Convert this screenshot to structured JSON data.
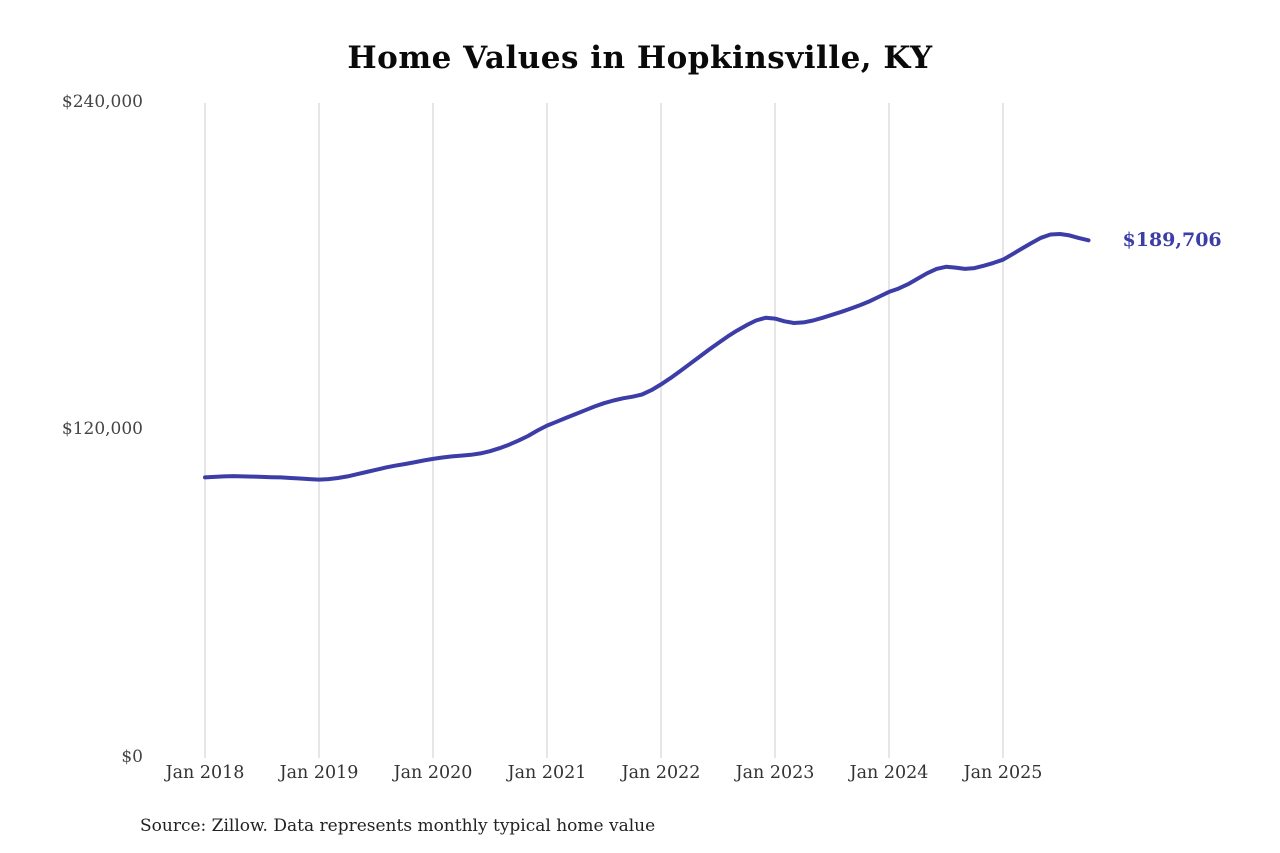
{
  "source_note": "Source: Zillow. Data represents monthly typical home value",
  "colors": {
    "line": "#3d3da8",
    "grid": "#cccccc",
    "end_label": "#3d3da8",
    "tick_text": "#444444"
  },
  "chart_data": {
    "type": "line",
    "title": "Home Values in Hopkinsville, KY",
    "xlabel": "",
    "ylabel": "",
    "ylim": [
      0,
      240000
    ],
    "grid": "vertical-only",
    "legend": "none",
    "y_ticks": [
      "$240,000",
      "$120,000",
      "$0"
    ],
    "x_ticks": [
      "Jan 2018",
      "Jan 2019",
      "Jan 2020",
      "Jan 2021",
      "Jan 2022",
      "Jan 2023",
      "Jan 2024",
      "Jan 2025"
    ],
    "x_start": "2018-01",
    "x_end": "2025-10",
    "x_interval": "monthly",
    "end_label": "$189,706",
    "final_value": 189706,
    "values": [
      102800,
      103000,
      103200,
      103300,
      103200,
      103100,
      103000,
      102900,
      102800,
      102600,
      102400,
      102200,
      102000,
      102200,
      102600,
      103200,
      104000,
      104800,
      105600,
      106400,
      107100,
      107700,
      108300,
      109000,
      109600,
      110100,
      110500,
      110800,
      111100,
      111600,
      112400,
      113500,
      114800,
      116300,
      118000,
      120000,
      121800,
      123200,
      124600,
      126000,
      127400,
      128800,
      130000,
      131000,
      131800,
      132400,
      133200,
      134800,
      136900,
      139200,
      141700,
      144300,
      146900,
      149500,
      152000,
      154400,
      156600,
      158600,
      160300,
      161300,
      161000,
      160000,
      159400,
      159600,
      160300,
      161300,
      162400,
      163500,
      164700,
      166000,
      167400,
      169100,
      170800,
      172000,
      173600,
      175600,
      177600,
      179200,
      180000,
      179700,
      179200,
      179500,
      180400,
      181400,
      182600,
      184600,
      186700,
      188700,
      190600,
      191800,
      192000,
      191500,
      190500,
      189706
    ]
  }
}
